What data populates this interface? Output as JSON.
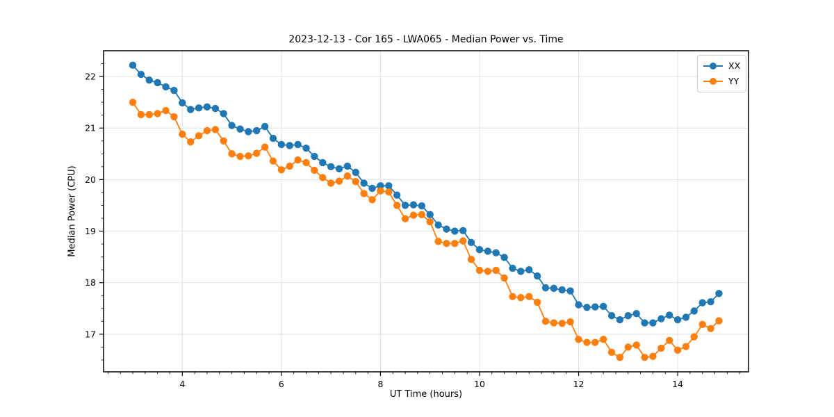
{
  "title": "2023-12-13 - Cor 165 - LWA065 - Median Power vs. Time",
  "chart_data": {
    "type": "line",
    "title": "2023-12-13 - Cor 165 - LWA065 - Median Power vs. Time",
    "xlabel": "UT Time (hours)",
    "ylabel": "Median Power (CPU)",
    "xlim": [
      2.41,
      15.43
    ],
    "ylim": [
      16.27,
      22.5
    ],
    "x_ticks": [
      4,
      6,
      8,
      10,
      12,
      14
    ],
    "y_ticks": [
      17,
      18,
      19,
      20,
      21,
      22
    ],
    "minor_tick_step_x": 0.25,
    "minor_tick_step_y": 0.25,
    "grid": true,
    "legend_position": "upper right",
    "background": "#ffffff",
    "grid_color": "#dddddd",
    "spine_color": "#000000",
    "x": [
      3.0,
      3.167,
      3.333,
      3.5,
      3.667,
      3.833,
      4.0,
      4.167,
      4.333,
      4.5,
      4.667,
      4.833,
      5.0,
      5.167,
      5.333,
      5.5,
      5.667,
      5.833,
      6.0,
      6.167,
      6.333,
      6.5,
      6.667,
      6.833,
      7.0,
      7.167,
      7.333,
      7.5,
      7.667,
      7.833,
      8.0,
      8.167,
      8.333,
      8.5,
      8.667,
      8.833,
      9.0,
      9.167,
      9.333,
      9.5,
      9.667,
      9.833,
      10.0,
      10.167,
      10.333,
      10.5,
      10.667,
      10.833,
      11.0,
      11.167,
      11.333,
      11.5,
      11.667,
      11.833,
      12.0,
      12.167,
      12.333,
      12.5,
      12.667,
      12.833,
      13.0,
      13.167,
      13.333,
      13.5,
      13.667,
      13.833,
      14.0,
      14.167,
      14.333,
      14.5,
      14.667,
      14.833
    ],
    "series": [
      {
        "name": "XX",
        "color": "#1f77b4",
        "marker": "circle",
        "values": [
          22.22,
          22.04,
          21.93,
          21.88,
          21.8,
          21.73,
          21.49,
          21.36,
          21.39,
          21.41,
          21.38,
          21.28,
          21.05,
          20.98,
          20.93,
          20.95,
          21.03,
          20.8,
          20.68,
          20.66,
          20.68,
          20.61,
          20.45,
          20.33,
          20.25,
          20.21,
          20.26,
          20.14,
          19.93,
          19.83,
          19.88,
          19.88,
          19.7,
          19.5,
          19.51,
          19.49,
          19.32,
          19.12,
          19.04,
          19.0,
          19.01,
          18.78,
          18.64,
          18.61,
          18.58,
          18.49,
          18.28,
          18.22,
          18.25,
          18.13,
          17.9,
          17.89,
          17.86,
          17.84,
          17.57,
          17.52,
          17.53,
          17.54,
          17.36,
          17.28,
          17.36,
          17.4,
          17.22,
          17.22,
          17.3,
          17.37,
          17.28,
          17.33,
          17.45,
          17.61,
          17.63,
          17.79
        ]
      },
      {
        "name": "YY",
        "color": "#ff7f0e",
        "marker": "circle",
        "values": [
          21.5,
          21.26,
          21.26,
          21.28,
          21.34,
          21.22,
          20.88,
          20.73,
          20.85,
          20.95,
          20.97,
          20.75,
          20.5,
          20.45,
          20.46,
          20.51,
          20.63,
          20.36,
          20.19,
          20.26,
          20.38,
          20.33,
          20.18,
          20.04,
          19.93,
          19.97,
          20.07,
          19.96,
          19.73,
          19.61,
          19.78,
          19.76,
          19.5,
          19.24,
          19.31,
          19.32,
          19.18,
          18.8,
          18.76,
          18.76,
          18.81,
          18.45,
          18.24,
          18.22,
          18.24,
          18.09,
          17.73,
          17.71,
          17.73,
          17.62,
          17.25,
          17.22,
          17.21,
          17.24,
          16.9,
          16.84,
          16.84,
          16.9,
          16.65,
          16.55,
          16.75,
          16.79,
          16.55,
          16.57,
          16.73,
          16.88,
          16.69,
          16.76,
          16.95,
          17.19,
          17.11,
          17.26
        ]
      }
    ]
  },
  "legend": {
    "items": [
      {
        "label": "XX"
      },
      {
        "label": "YY"
      }
    ]
  }
}
